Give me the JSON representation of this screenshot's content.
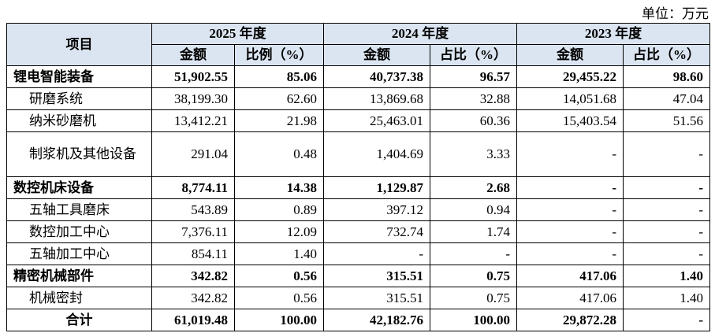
{
  "header": {
    "unit": "单位：万元"
  },
  "table": {
    "item_header": "项目",
    "years": [
      "2025 年度",
      "2024 年度",
      "2023 年度"
    ],
    "subheaders": [
      "金额",
      "比例（%）",
      "金额",
      "占比（%）",
      "金额",
      "占比（%）"
    ],
    "rows": [
      {
        "label": "锂电智能装备",
        "bold": true,
        "cells": [
          "51,902.55",
          "85.06",
          "40,737.38",
          "96.57",
          "29,455.22",
          "98.60"
        ]
      },
      {
        "label": "研磨系统",
        "cells": [
          "38,199.30",
          "62.60",
          "13,869.68",
          "32.88",
          "14,051.68",
          "47.04"
        ]
      },
      {
        "label": "纳米砂磨机",
        "cells": [
          "13,412.21",
          "21.98",
          "25,463.01",
          "60.36",
          "15,403.54",
          "51.56"
        ]
      },
      {
        "label": "制浆机及其他设备",
        "cells": [
          "291.04",
          "0.48",
          "1,404.69",
          "3.33",
          "-",
          "-"
        ]
      },
      {
        "label": "数控机床设备",
        "bold": true,
        "cells": [
          "8,774.11",
          "14.38",
          "1,129.87",
          "2.68",
          "-",
          "-"
        ]
      },
      {
        "label": "五轴工具磨床",
        "cells": [
          "543.89",
          "0.89",
          "397.12",
          "0.94",
          "-",
          "-"
        ]
      },
      {
        "label": "数控加工中心",
        "cells": [
          "7,376.11",
          "12.09",
          "732.74",
          "1.74",
          "-",
          "-"
        ]
      },
      {
        "label": "五轴加工中心",
        "cells": [
          "854.11",
          "1.40",
          "-",
          "-",
          "-",
          "-"
        ]
      },
      {
        "label": "精密机械部件",
        "bold": true,
        "cells": [
          "342.82",
          "0.56",
          "315.51",
          "0.75",
          "417.06",
          "1.40"
        ]
      },
      {
        "label": "机械密封",
        "cells": [
          "342.82",
          "0.56",
          "315.51",
          "0.75",
          "417.06",
          "1.40"
        ]
      },
      {
        "label": "合计",
        "bold": true,
        "cells": [
          "61,019.48",
          "100.00",
          "42,182.76",
          "100.00",
          "29,872.28",
          "-"
        ]
      }
    ]
  }
}
